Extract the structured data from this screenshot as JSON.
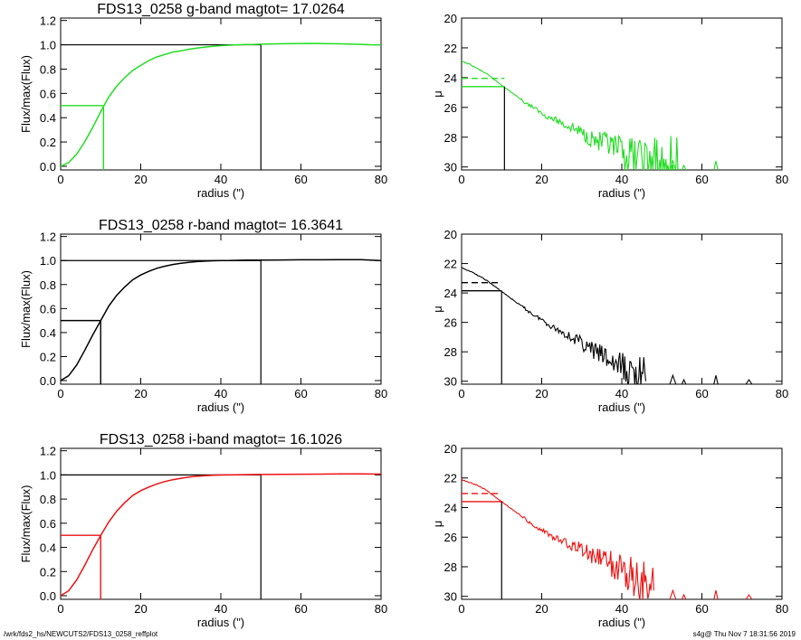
{
  "footer": {
    "path": "/wrk/fds2_hs/NEWCUTS2/FDS13_0258_reffplot",
    "stamp": "s4g@  Thu Nov  7 18:31:56 2019"
  },
  "colors": {
    "g": "#22dd22",
    "r": "#000000",
    "i": "#ee1111",
    "axis": "#000000"
  },
  "chart_data": [
    {
      "type": "line",
      "band": "g",
      "color": "#22dd22",
      "title": "FDS13_0258 g-band  magtot=       17.0264",
      "xlabel": "radius (\")",
      "ylabel": "Flux/max(Flux)",
      "xlim": [
        0,
        80
      ],
      "ylim": [
        -0.03,
        1.22
      ],
      "xticks": [
        "0",
        "20",
        "40",
        "60",
        "80"
      ],
      "yticks": [
        "0.0",
        "0.2",
        "0.4",
        "0.6",
        "0.8",
        "1.0",
        "1.2"
      ],
      "series": [
        {
          "x": [
            0,
            2,
            4,
            6,
            8,
            10,
            12,
            14,
            16,
            18,
            20,
            22,
            24,
            26,
            28,
            30,
            32,
            34,
            36,
            38,
            40,
            42,
            44,
            46,
            48,
            50,
            54,
            58,
            62,
            66,
            70,
            74,
            78,
            80
          ],
          "y": [
            0,
            0.03,
            0.1,
            0.2,
            0.32,
            0.45,
            0.57,
            0.66,
            0.73,
            0.79,
            0.83,
            0.87,
            0.9,
            0.92,
            0.94,
            0.95,
            0.963,
            0.973,
            0.981,
            0.988,
            0.993,
            0.997,
            1.0,
            1.002,
            1.003,
            1.005,
            1.008,
            1.01,
            1.012,
            1.01,
            1.008,
            1.004,
            1.0,
            1.0
          ]
        }
      ],
      "reference_lines": {
        "half_light_radius": 10.7,
        "half_flux": 0.5,
        "total_radius": 50,
        "total_flux": 1.0
      }
    },
    {
      "type": "line",
      "band": "g",
      "color": "#22dd22",
      "xlabel": "radius (\")",
      "ylabel": "μ",
      "xlim": [
        0,
        80
      ],
      "ylim": [
        30.2,
        20
      ],
      "y_inverted": true,
      "xticks": [
        "0",
        "20",
        "40",
        "60",
        "80"
      ],
      "yticks": [
        "20",
        "22",
        "24",
        "26",
        "28",
        "30"
      ],
      "series": [
        {
          "x": [
            0,
            2,
            4,
            6,
            8,
            10,
            12,
            14,
            16,
            18,
            20,
            22,
            24,
            26,
            28,
            30,
            32,
            34,
            36,
            38,
            40,
            42,
            44,
            46,
            48,
            50,
            52,
            54
          ],
          "y": [
            22.9,
            23.1,
            23.4,
            23.7,
            24.1,
            24.5,
            24.9,
            25.3,
            25.7,
            26.0,
            26.4,
            26.7,
            26.9,
            27.2,
            27.4,
            27.7,
            28.0,
            28.3,
            28.5,
            28.8,
            29.1,
            29.3,
            29.4,
            29.6,
            29.8,
            30.0,
            30.1,
            30.2
          ]
        }
      ],
      "reference_lines": {
        "radius": 10.7,
        "mu_effective": 24.6,
        "mu_mean_dashed": 24.05
      }
    },
    {
      "type": "line",
      "band": "r",
      "color": "#000000",
      "title": "FDS13_0258 r-band  magtot=       16.3641",
      "xlabel": "radius (\")",
      "ylabel": "Flux/max(Flux)",
      "xlim": [
        0,
        80
      ],
      "ylim": [
        -0.03,
        1.22
      ],
      "xticks": [
        "0",
        "20",
        "40",
        "60",
        "80"
      ],
      "yticks": [
        "0.0",
        "0.2",
        "0.4",
        "0.6",
        "0.8",
        "1.0",
        "1.2"
      ],
      "series": [
        {
          "x": [
            0,
            2,
            4,
            6,
            8,
            10,
            12,
            14,
            16,
            18,
            20,
            22,
            24,
            26,
            28,
            30,
            32,
            34,
            36,
            38,
            40,
            42,
            44,
            46,
            48,
            50,
            55,
            60,
            65,
            70,
            75,
            80
          ],
          "y": [
            0,
            0.04,
            0.13,
            0.25,
            0.38,
            0.5,
            0.62,
            0.71,
            0.78,
            0.84,
            0.88,
            0.91,
            0.935,
            0.953,
            0.967,
            0.977,
            0.985,
            0.991,
            0.995,
            0.998,
            1.0,
            1.0,
            1.002,
            1.003,
            1.003,
            1.004,
            1.005,
            1.006,
            1.006,
            1.007,
            1.007,
            1.0
          ]
        }
      ],
      "reference_lines": {
        "half_light_radius": 10,
        "half_flux": 0.5,
        "total_radius": 50,
        "total_flux": 1.0
      }
    },
    {
      "type": "line",
      "band": "r",
      "color": "#000000",
      "xlabel": "radius (\")",
      "ylabel": "μ",
      "xlim": [
        0,
        80
      ],
      "ylim": [
        30.2,
        20
      ],
      "y_inverted": true,
      "xticks": [
        "0",
        "20",
        "40",
        "60",
        "80"
      ],
      "yticks": [
        "20",
        "22",
        "24",
        "26",
        "28",
        "30"
      ],
      "series": [
        {
          "x": [
            0,
            2,
            4,
            6,
            8,
            10,
            12,
            14,
            16,
            18,
            20,
            22,
            24,
            26,
            28,
            30,
            32,
            34,
            36,
            38,
            40,
            42,
            44,
            46
          ],
          "y": [
            22.3,
            22.5,
            22.8,
            23.1,
            23.5,
            23.9,
            24.3,
            24.7,
            25.1,
            25.5,
            25.8,
            26.2,
            26.5,
            26.8,
            27.1,
            27.4,
            27.8,
            28.1,
            28.4,
            28.8,
            29.1,
            29.4,
            29.7,
            30.0
          ]
        }
      ],
      "reference_lines": {
        "radius": 10,
        "mu_effective": 23.85,
        "mu_mean_dashed": 23.3
      }
    },
    {
      "type": "line",
      "band": "i",
      "color": "#ee1111",
      "title": "FDS13_0258 i-band  magtot=       16.1026",
      "xlabel": "radius (\")",
      "ylabel": "Flux/max(Flux)",
      "xlim": [
        0,
        80
      ],
      "ylim": [
        -0.03,
        1.22
      ],
      "xticks": [
        "0",
        "20",
        "40",
        "60",
        "80"
      ],
      "yticks": [
        "0.0",
        "0.2",
        "0.4",
        "0.6",
        "0.8",
        "1.0",
        "1.2"
      ],
      "series": [
        {
          "x": [
            0,
            2,
            4,
            6,
            8,
            10,
            12,
            14,
            16,
            18,
            20,
            22,
            24,
            26,
            28,
            30,
            32,
            34,
            36,
            38,
            40,
            42,
            44,
            46,
            48,
            50,
            55,
            60,
            65,
            70,
            75,
            80
          ],
          "y": [
            0,
            0.04,
            0.13,
            0.25,
            0.38,
            0.5,
            0.61,
            0.7,
            0.77,
            0.83,
            0.87,
            0.9,
            0.925,
            0.945,
            0.96,
            0.972,
            0.982,
            0.989,
            0.994,
            0.997,
            0.999,
            1.0,
            1.001,
            1.002,
            1.003,
            1.004,
            1.005,
            1.006,
            1.007,
            1.008,
            1.008,
            1.007
          ]
        }
      ],
      "reference_lines": {
        "half_light_radius": 10,
        "half_flux": 0.5,
        "total_radius": 50,
        "total_flux": 1.0
      }
    },
    {
      "type": "line",
      "band": "i",
      "color": "#ee1111",
      "xlabel": "radius (\")",
      "ylabel": "μ",
      "xlim": [
        0,
        80
      ],
      "ylim": [
        30.2,
        20
      ],
      "y_inverted": true,
      "xticks": [
        "0",
        "20",
        "40",
        "60",
        "80"
      ],
      "yticks": [
        "20",
        "22",
        "24",
        "26",
        "28",
        "30"
      ],
      "series": [
        {
          "x": [
            0,
            2,
            4,
            6,
            8,
            10,
            12,
            14,
            16,
            18,
            20,
            22,
            24,
            26,
            28,
            30,
            32,
            34,
            36,
            38,
            40,
            42,
            44,
            46,
            48
          ],
          "y": [
            22.1,
            22.3,
            22.5,
            22.8,
            23.2,
            23.6,
            24.0,
            24.4,
            24.8,
            25.2,
            25.5,
            25.9,
            26.1,
            26.4,
            26.6,
            26.8,
            27.1,
            27.4,
            27.6,
            27.9,
            28.2,
            28.5,
            28.8,
            29.2,
            29.6
          ]
        }
      ],
      "reference_lines": {
        "radius": 10,
        "mu_effective": 23.6,
        "mu_mean_dashed": 23.05
      }
    }
  ]
}
